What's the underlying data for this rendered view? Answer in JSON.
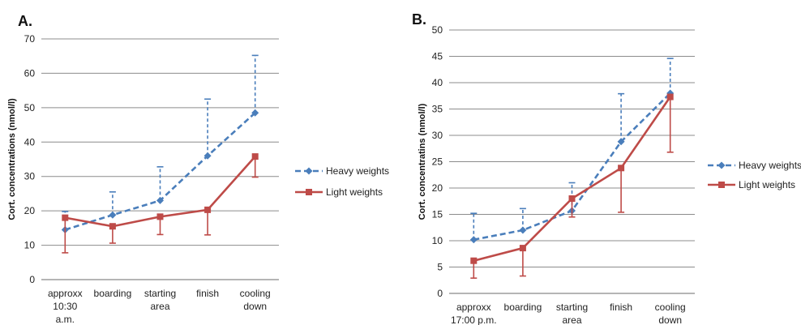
{
  "chart_data": [
    {
      "type": "line",
      "panel_label": "A.",
      "ylabel": "Cort. concentrations  (nmol/l)",
      "ylim": [
        0,
        70
      ],
      "ytick_step": 10,
      "grid": true,
      "legend_position": "right",
      "categories": [
        [
          "approxx",
          "10:30",
          "a.m."
        ],
        [
          "boarding"
        ],
        [
          "starting",
          "area"
        ],
        [
          "finish"
        ],
        [
          "cooling",
          "down"
        ]
      ],
      "series": [
        {
          "name": "Heavy weights",
          "color": "#4a7ebb",
          "dash": "dashed",
          "marker": "diamond",
          "values": [
            14.5,
            18.8,
            23.0,
            36.0,
            48.5
          ],
          "error_upper": [
            19.8,
            25.5,
            32.8,
            52.5,
            65.2
          ],
          "error_direction": "up"
        },
        {
          "name": "Light weights",
          "color": "#be4b48",
          "dash": "solid",
          "marker": "square",
          "values": [
            18.0,
            15.5,
            18.3,
            20.3,
            35.8
          ],
          "error_lower": [
            7.8,
            10.6,
            13.1,
            13.0,
            29.8
          ],
          "error_direction": "down"
        }
      ]
    },
    {
      "type": "line",
      "panel_label": "B.",
      "ylabel": "Cort. concentratins  (nmol/l)",
      "ylim": [
        0,
        50
      ],
      "ytick_step": 5,
      "grid": true,
      "legend_position": "right",
      "categories": [
        [
          "approxx",
          "17:00 p.m."
        ],
        [
          "boarding"
        ],
        [
          "starting",
          "area"
        ],
        [
          "finish"
        ],
        [
          "cooling",
          "down"
        ]
      ],
      "series": [
        {
          "name": "Heavy weights",
          "color": "#4a7ebb",
          "dash": "dashed",
          "marker": "diamond",
          "values": [
            10.2,
            12.0,
            15.7,
            28.8,
            38.0
          ],
          "error_upper": [
            15.2,
            16.1,
            21.0,
            37.9,
            44.6
          ],
          "error_direction": "up"
        },
        {
          "name": "Light weights",
          "color": "#be4b48",
          "dash": "solid",
          "marker": "square",
          "values": [
            6.2,
            8.6,
            18.0,
            23.8,
            37.3
          ],
          "error_lower": [
            2.9,
            3.3,
            14.5,
            15.4,
            26.8
          ],
          "error_direction": "down"
        }
      ]
    }
  ]
}
